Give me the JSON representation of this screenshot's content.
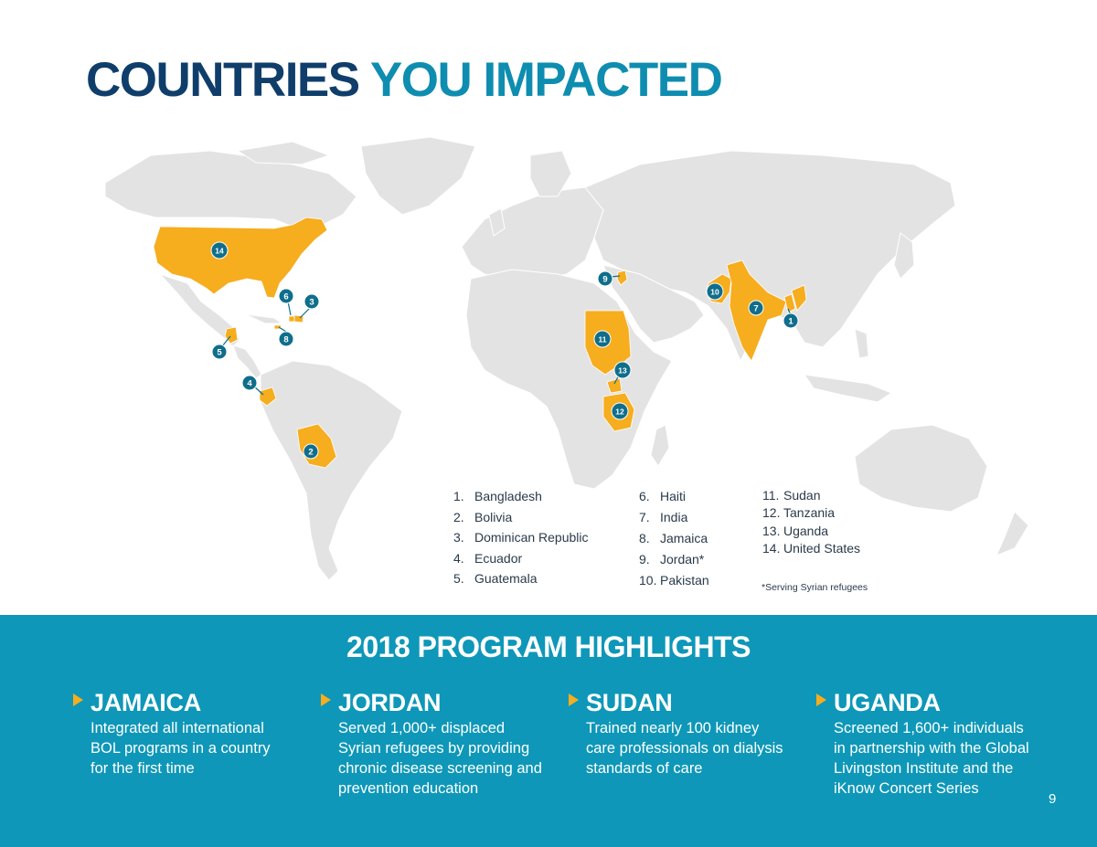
{
  "title": {
    "part1": "COUNTRIES",
    "part2": "YOU IMPACTED"
  },
  "colors": {
    "land": "#e3e3e3",
    "highlight": "#f6ad1e",
    "marker": "#0f6e8c",
    "band": "#0e97b8",
    "title_dark": "#0f3e6b",
    "title_light": "#0e8db0"
  },
  "map": {
    "markers": [
      "1",
      "2",
      "3",
      "4",
      "5",
      "6",
      "7",
      "8",
      "9",
      "10",
      "11",
      "12",
      "13",
      "14"
    ]
  },
  "legend": {
    "col1": [
      {
        "num": "1.",
        "name": "Bangladesh"
      },
      {
        "num": "2.",
        "name": "Bolivia"
      },
      {
        "num": "3.",
        "name": "Dominican Republic"
      },
      {
        "num": "4.",
        "name": "Ecuador"
      },
      {
        "num": "5.",
        "name": "Guatemala"
      }
    ],
    "col2": [
      {
        "num": "6.",
        "name": "Haiti"
      },
      {
        "num": "7.",
        "name": "India"
      },
      {
        "num": "8.",
        "name": "Jamaica"
      },
      {
        "num": "9.",
        "name": "Jordan*"
      },
      {
        "num": "10.",
        "name": "Pakistan"
      }
    ],
    "col3": [
      {
        "num": "11.",
        "name": "Sudan"
      },
      {
        "num": "12.",
        "name": "Tanzania"
      },
      {
        "num": "13.",
        "name": "Uganda"
      },
      {
        "num": "14.",
        "name": "United States"
      }
    ],
    "footnote": "*Serving Syrian refugees"
  },
  "highlights": {
    "title": "2018 PROGRAM HIGHLIGHTS",
    "items": [
      {
        "title": "JAMAICA",
        "lines": [
          "Integrated all international",
          "BOL programs in a country",
          "for the first time"
        ]
      },
      {
        "title": "JORDAN",
        "lines": [
          "Served 1,000+ displaced",
          "Syrian refugees by providing",
          "chronic disease screening and",
          "prevention education"
        ]
      },
      {
        "title": "SUDAN",
        "lines": [
          "Trained nearly 100 kidney",
          "care professionals on dialysis",
          "standards of care"
        ]
      },
      {
        "title": "UGANDA",
        "lines": [
          "Screened 1,600+ individuals",
          "in partnership with the Global",
          "Livingston Institute and the",
          "iKnow Concert Series"
        ]
      }
    ]
  },
  "page_number": "9"
}
